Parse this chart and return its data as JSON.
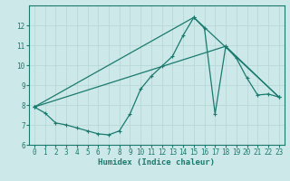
{
  "xlabel": "Humidex (Indice chaleur)",
  "bg_color": "#cce8e8",
  "grid_color": "#b8d8d8",
  "line_color": "#1a7a6e",
  "xlim": [
    -0.5,
    23.5
  ],
  "ylim": [
    6,
    13
  ],
  "xticks": [
    0,
    1,
    2,
    3,
    4,
    5,
    6,
    7,
    8,
    9,
    10,
    11,
    12,
    13,
    14,
    15,
    16,
    17,
    18,
    19,
    20,
    21,
    22,
    23
  ],
  "yticks": [
    6,
    7,
    8,
    9,
    10,
    11,
    12
  ],
  "series1_x": [
    0,
    1,
    2,
    3,
    4,
    5,
    6,
    7,
    8,
    9,
    10,
    11,
    12,
    13,
    14,
    15,
    16,
    17,
    18,
    19,
    20,
    21,
    22,
    23
  ],
  "series1_y": [
    7.9,
    7.6,
    7.1,
    7.0,
    6.85,
    6.7,
    6.55,
    6.5,
    6.7,
    7.55,
    8.8,
    9.45,
    9.95,
    10.45,
    11.5,
    12.4,
    11.85,
    7.55,
    10.95,
    10.35,
    9.35,
    8.5,
    8.55,
    8.4
  ],
  "series2_x": [
    0,
    15,
    23
  ],
  "series2_y": [
    7.9,
    12.4,
    8.4
  ],
  "series3_x": [
    0,
    18,
    23
  ],
  "series3_y": [
    7.9,
    10.95,
    8.4
  ]
}
